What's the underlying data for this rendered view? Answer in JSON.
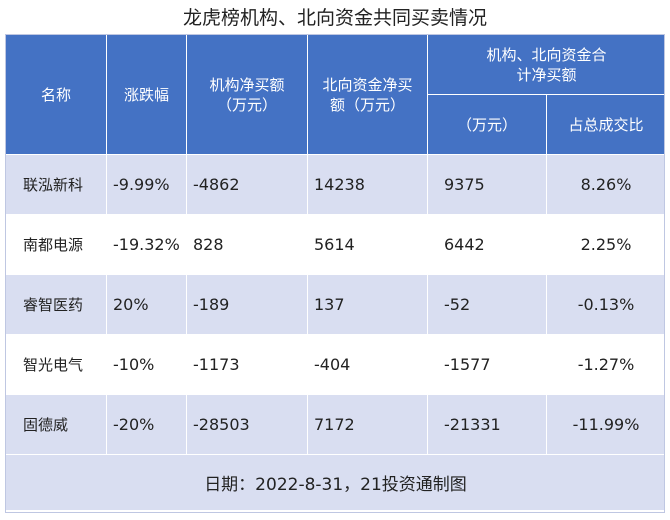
{
  "title": "龙虎榜机构、北向资金共同买卖情况",
  "headers": {
    "name": "名称",
    "change": "涨跌幅",
    "inst_net": "机构净买额（万元）",
    "north_net": "北向资金净买额（万元）",
    "combined_group": "机构、北向资金合计净买额",
    "combined_amount": "（万元）",
    "combined_share": "占总成交比"
  },
  "rows": [
    {
      "name": "联泓新科",
      "change": "-9.99%",
      "inst_net": "-4862",
      "north_net": "14238",
      "combined": "9375",
      "share": "8.26%"
    },
    {
      "name": "南都电源",
      "change": "-19.32%",
      "inst_net": "828",
      "north_net": "5614",
      "combined": "6442",
      "share": "2.25%"
    },
    {
      "name": "睿智医药",
      "change": "20%",
      "inst_net": "-189",
      "north_net": "137",
      "combined": "-52",
      "share": "-0.13%"
    },
    {
      "name": "智光电气",
      "change": "-10%",
      "inst_net": "-1173",
      "north_net": "-404",
      "combined": "-1577",
      "share": "-1.27%"
    },
    {
      "name": "固德威",
      "change": "-20%",
      "inst_net": "-28503",
      "north_net": "7172",
      "combined": "-21331",
      "share": "-11.99%"
    }
  ],
  "footer": "日期：2022-8-31，21投资通制图",
  "colors": {
    "header_bg": "#4472c4",
    "stripe_bg": "#d9def1",
    "white": "#ffffff"
  }
}
